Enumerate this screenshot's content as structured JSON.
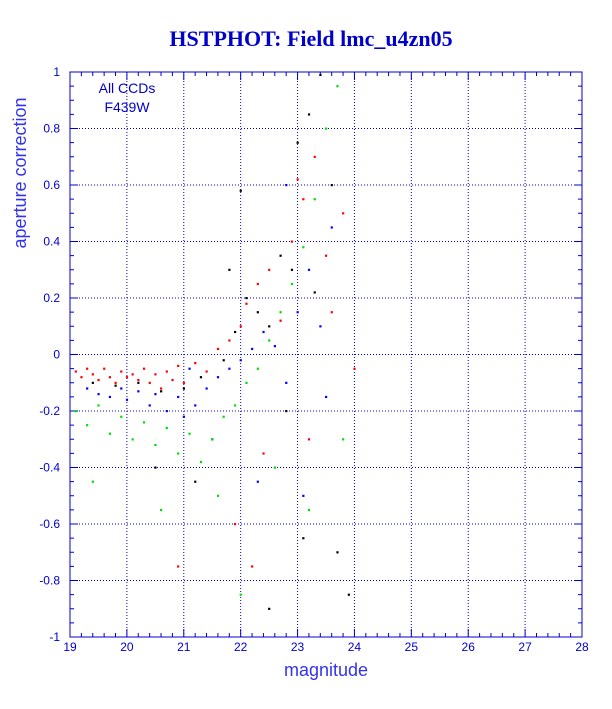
{
  "chart_data": {
    "type": "scatter",
    "title": "HSTPHOT: Field lmc_u4zn05",
    "xlabel": "magnitude",
    "ylabel": "aperture correction",
    "xlim": [
      19,
      28
    ],
    "ylim": [
      -1,
      1
    ],
    "xticks": [
      19,
      20,
      21,
      22,
      23,
      24,
      25,
      26,
      27,
      28
    ],
    "yticks": [
      -1,
      -0.8,
      -0.6,
      -0.4,
      -0.2,
      0,
      0.2,
      0.4,
      0.6,
      0.8,
      1
    ],
    "grid": true,
    "annotation": [
      "All CCDs",
      "F439W"
    ],
    "colors": {
      "axis": "#0000cc",
      "grid": "#0000cc",
      "title": "#0000cc"
    },
    "series": [
      {
        "color": "#ff0000",
        "points": [
          [
            19.1,
            -0.06
          ],
          [
            19.2,
            -0.08
          ],
          [
            19.3,
            -0.05
          ],
          [
            19.4,
            -0.07
          ],
          [
            19.5,
            -0.09
          ],
          [
            19.6,
            -0.05
          ],
          [
            19.7,
            -0.08
          ],
          [
            19.8,
            -0.1
          ],
          [
            19.9,
            -0.06
          ],
          [
            20.0,
            -0.08
          ],
          [
            20.1,
            -0.07
          ],
          [
            20.2,
            -0.09
          ],
          [
            20.3,
            -0.05
          ],
          [
            20.4,
            -0.1
          ],
          [
            20.5,
            -0.07
          ],
          [
            20.6,
            -0.12
          ],
          [
            20.7,
            -0.06
          ],
          [
            20.8,
            -0.09
          ],
          [
            20.9,
            -0.04
          ],
          [
            21.0,
            -0.1
          ],
          [
            21.2,
            -0.03
          ],
          [
            21.4,
            -0.06
          ],
          [
            21.6,
            0.02
          ],
          [
            21.8,
            0.05
          ],
          [
            22.0,
            0.1
          ],
          [
            22.1,
            0.18
          ],
          [
            22.3,
            0.25
          ],
          [
            22.5,
            0.3
          ],
          [
            22.7,
            0.12
          ],
          [
            22.9,
            0.4
          ],
          [
            23.0,
            0.62
          ],
          [
            23.1,
            0.55
          ],
          [
            23.3,
            0.7
          ],
          [
            23.5,
            0.35
          ],
          [
            23.6,
            0.15
          ],
          [
            23.8,
            0.5
          ],
          [
            22.4,
            -0.35
          ],
          [
            21.9,
            -0.6
          ],
          [
            22.2,
            -0.75
          ],
          [
            20.9,
            -0.75
          ],
          [
            23.2,
            -0.3
          ],
          [
            24.0,
            -0.05
          ]
        ]
      },
      {
        "color": "#0000ff",
        "points": [
          [
            19.3,
            -0.12
          ],
          [
            19.5,
            -0.14
          ],
          [
            19.7,
            -0.15
          ],
          [
            19.9,
            -0.12
          ],
          [
            20.0,
            -0.16
          ],
          [
            20.2,
            -0.13
          ],
          [
            20.4,
            -0.18
          ],
          [
            20.5,
            -0.14
          ],
          [
            20.7,
            -0.2
          ],
          [
            20.9,
            -0.15
          ],
          [
            21.0,
            -0.22
          ],
          [
            21.2,
            -0.18
          ],
          [
            21.4,
            -0.12
          ],
          [
            21.6,
            -0.08
          ],
          [
            21.8,
            -0.05
          ],
          [
            22.0,
            -0.02
          ],
          [
            22.2,
            0.02
          ],
          [
            22.4,
            0.08
          ],
          [
            22.6,
            0.03
          ],
          [
            22.8,
            -0.1
          ],
          [
            23.0,
            0.15
          ],
          [
            23.2,
            0.3
          ],
          [
            23.4,
            0.1
          ],
          [
            23.6,
            0.45
          ],
          [
            21.5,
            -0.3
          ],
          [
            22.3,
            -0.45
          ],
          [
            23.1,
            -0.5
          ],
          [
            23.5,
            -0.15
          ],
          [
            22.8,
            0.6
          ],
          [
            21.1,
            -0.05
          ]
        ]
      },
      {
        "color": "#00dd00",
        "points": [
          [
            19.1,
            -0.2
          ],
          [
            19.3,
            -0.25
          ],
          [
            19.5,
            -0.18
          ],
          [
            19.7,
            -0.28
          ],
          [
            19.9,
            -0.22
          ],
          [
            20.1,
            -0.3
          ],
          [
            20.3,
            -0.24
          ],
          [
            20.5,
            -0.32
          ],
          [
            20.7,
            -0.26
          ],
          [
            20.9,
            -0.35
          ],
          [
            21.1,
            -0.28
          ],
          [
            21.3,
            -0.38
          ],
          [
            21.5,
            -0.3
          ],
          [
            21.7,
            -0.22
          ],
          [
            21.9,
            -0.18
          ],
          [
            22.1,
            -0.1
          ],
          [
            22.3,
            -0.05
          ],
          [
            22.5,
            0.05
          ],
          [
            22.7,
            0.15
          ],
          [
            22.9,
            0.25
          ],
          [
            23.1,
            0.38
          ],
          [
            23.3,
            0.55
          ],
          [
            23.5,
            0.8
          ],
          [
            23.7,
            0.95
          ],
          [
            22.6,
            -0.4
          ],
          [
            23.2,
            -0.55
          ],
          [
            23.8,
            -0.3
          ],
          [
            22.0,
            -0.85
          ],
          [
            21.6,
            -0.5
          ],
          [
            19.4,
            -0.45
          ],
          [
            20.6,
            -0.55
          ]
        ]
      },
      {
        "color": "#000000",
        "points": [
          [
            19.4,
            -0.1
          ],
          [
            19.8,
            -0.11
          ],
          [
            20.2,
            -0.1
          ],
          [
            20.6,
            -0.13
          ],
          [
            21.0,
            -0.12
          ],
          [
            21.3,
            -0.08
          ],
          [
            21.7,
            -0.02
          ],
          [
            21.9,
            0.08
          ],
          [
            22.1,
            0.2
          ],
          [
            22.3,
            0.15
          ],
          [
            22.5,
            0.1
          ],
          [
            22.7,
            0.35
          ],
          [
            22.9,
            0.3
          ],
          [
            23.0,
            0.75
          ],
          [
            23.2,
            0.85
          ],
          [
            23.4,
            0.99
          ],
          [
            23.6,
            0.6
          ],
          [
            23.3,
            0.22
          ],
          [
            21.8,
            0.3
          ],
          [
            22.0,
            0.58
          ],
          [
            22.8,
            -0.2
          ],
          [
            23.1,
            -0.65
          ],
          [
            23.7,
            -0.7
          ],
          [
            22.5,
            -0.9
          ],
          [
            20.5,
            -0.4
          ],
          [
            21.2,
            -0.45
          ],
          [
            23.9,
            -0.85
          ]
        ]
      }
    ]
  }
}
